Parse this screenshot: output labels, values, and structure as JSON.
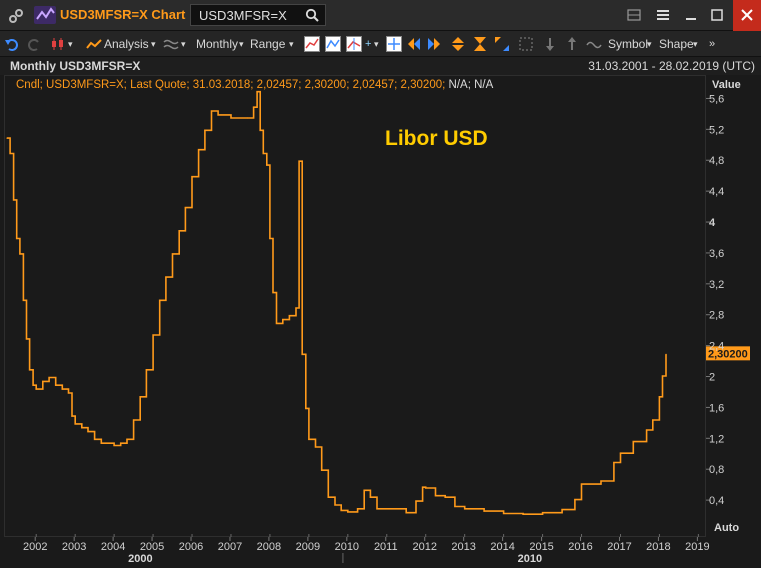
{
  "window": {
    "title": "USD3MFSR=X Chart",
    "search_value": "USD3MFSR=X"
  },
  "toolbar": {
    "analysis_label": "Analysis",
    "interval_label": "Monthly",
    "range_label": "Range",
    "symbol_label": "Symbol",
    "shape_label": "Shape"
  },
  "chart_header": {
    "left": "Monthly USD3MFSR=X",
    "right": "31.03.2001 - 28.02.2019 (UTC)"
  },
  "legend": {
    "text": "Cndl; USD3MFSR=X; Last Quote; 31.03.2018; 2,02457; 2,30200; 2,02457; 2,30200;",
    "na": "N/A; N/A"
  },
  "yaxis_header": "Value",
  "auto_label": "Auto",
  "last_value_label": "2,30200",
  "colors": {
    "line": "#ff9a1a",
    "annotation": "#ffcc00",
    "price_tag": "#ff9a1a"
  },
  "chart_data": {
    "type": "line",
    "title": "",
    "annotation": "Libor USD",
    "xlabel": "",
    "ylabel": "Value",
    "xlim": [
      2001.25,
      2019.17
    ],
    "ylim": [
      0,
      5.8
    ],
    "y_ticks": [
      "0,4",
      "0,8",
      "1,2",
      "1,6",
      "2",
      "2,4",
      "2,8",
      "3,2",
      "3,6",
      "4",
      "4,4",
      "4,8",
      "5,2",
      "5,6"
    ],
    "x_ticks": [
      "2002",
      "2003",
      "2004",
      "2005",
      "2006",
      "2007",
      "2008",
      "2009",
      "2010",
      "2011",
      "2012",
      "2013",
      "2014",
      "2015",
      "2016",
      "2017",
      "2018",
      "2019"
    ],
    "x_groups": [
      "2000",
      "2010"
    ],
    "series": [
      {
        "points": [
          [
            2001.25,
            5.1
          ],
          [
            2001.33,
            4.9
          ],
          [
            2001.42,
            4.3
          ],
          [
            2001.5,
            3.8
          ],
          [
            2001.58,
            3.6
          ],
          [
            2001.67,
            3.0
          ],
          [
            2001.75,
            2.5
          ],
          [
            2001.83,
            2.1
          ],
          [
            2001.92,
            1.9
          ],
          [
            2002.0,
            1.85
          ],
          [
            2002.17,
            1.95
          ],
          [
            2002.33,
            2.0
          ],
          [
            2002.5,
            1.9
          ],
          [
            2002.67,
            1.85
          ],
          [
            2002.83,
            1.8
          ],
          [
            2002.92,
            1.5
          ],
          [
            2003.0,
            1.4
          ],
          [
            2003.17,
            1.35
          ],
          [
            2003.33,
            1.3
          ],
          [
            2003.5,
            1.2
          ],
          [
            2003.67,
            1.15
          ],
          [
            2003.83,
            1.15
          ],
          [
            2004.0,
            1.12
          ],
          [
            2004.17,
            1.15
          ],
          [
            2004.33,
            1.2
          ],
          [
            2004.5,
            1.45
          ],
          [
            2004.67,
            1.75
          ],
          [
            2004.83,
            2.1
          ],
          [
            2005.0,
            2.55
          ],
          [
            2005.17,
            3.0
          ],
          [
            2005.33,
            3.3
          ],
          [
            2005.5,
            3.6
          ],
          [
            2005.67,
            3.9
          ],
          [
            2005.83,
            4.2
          ],
          [
            2006.0,
            4.6
          ],
          [
            2006.17,
            4.95
          ],
          [
            2006.33,
            5.2
          ],
          [
            2006.5,
            5.45
          ],
          [
            2006.67,
            5.4
          ],
          [
            2007.0,
            5.36
          ],
          [
            2007.42,
            5.36
          ],
          [
            2007.58,
            5.5
          ],
          [
            2007.67,
            5.7
          ],
          [
            2007.75,
            5.2
          ],
          [
            2007.83,
            4.9
          ],
          [
            2007.92,
            4.75
          ],
          [
            2008.0,
            3.8
          ],
          [
            2008.08,
            3.1
          ],
          [
            2008.17,
            2.7
          ],
          [
            2008.33,
            2.75
          ],
          [
            2008.5,
            2.8
          ],
          [
            2008.67,
            2.9
          ],
          [
            2008.75,
            4.8
          ],
          [
            2008.83,
            2.3
          ],
          [
            2008.92,
            1.6
          ],
          [
            2009.0,
            1.2
          ],
          [
            2009.17,
            1.1
          ],
          [
            2009.33,
            0.8
          ],
          [
            2009.5,
            0.45
          ],
          [
            2009.67,
            0.35
          ],
          [
            2009.83,
            0.28
          ],
          [
            2010.0,
            0.26
          ],
          [
            2010.25,
            0.3
          ],
          [
            2010.42,
            0.54
          ],
          [
            2010.58,
            0.45
          ],
          [
            2010.75,
            0.3
          ],
          [
            2011.0,
            0.3
          ],
          [
            2011.5,
            0.25
          ],
          [
            2011.75,
            0.4
          ],
          [
            2011.92,
            0.58
          ],
          [
            2012.0,
            0.57
          ],
          [
            2012.25,
            0.47
          ],
          [
            2012.5,
            0.45
          ],
          [
            2012.75,
            0.33
          ],
          [
            2013.0,
            0.3
          ],
          [
            2013.5,
            0.27
          ],
          [
            2014.0,
            0.24
          ],
          [
            2014.5,
            0.23
          ],
          [
            2015.0,
            0.25
          ],
          [
            2015.5,
            0.29
          ],
          [
            2015.83,
            0.42
          ],
          [
            2016.0,
            0.62
          ],
          [
            2016.5,
            0.66
          ],
          [
            2016.83,
            0.9
          ],
          [
            2017.0,
            1.02
          ],
          [
            2017.33,
            1.17
          ],
          [
            2017.67,
            1.32
          ],
          [
            2017.83,
            1.45
          ],
          [
            2018.0,
            1.75
          ],
          [
            2018.08,
            2.02
          ],
          [
            2018.17,
            2.3
          ]
        ]
      }
    ]
  }
}
